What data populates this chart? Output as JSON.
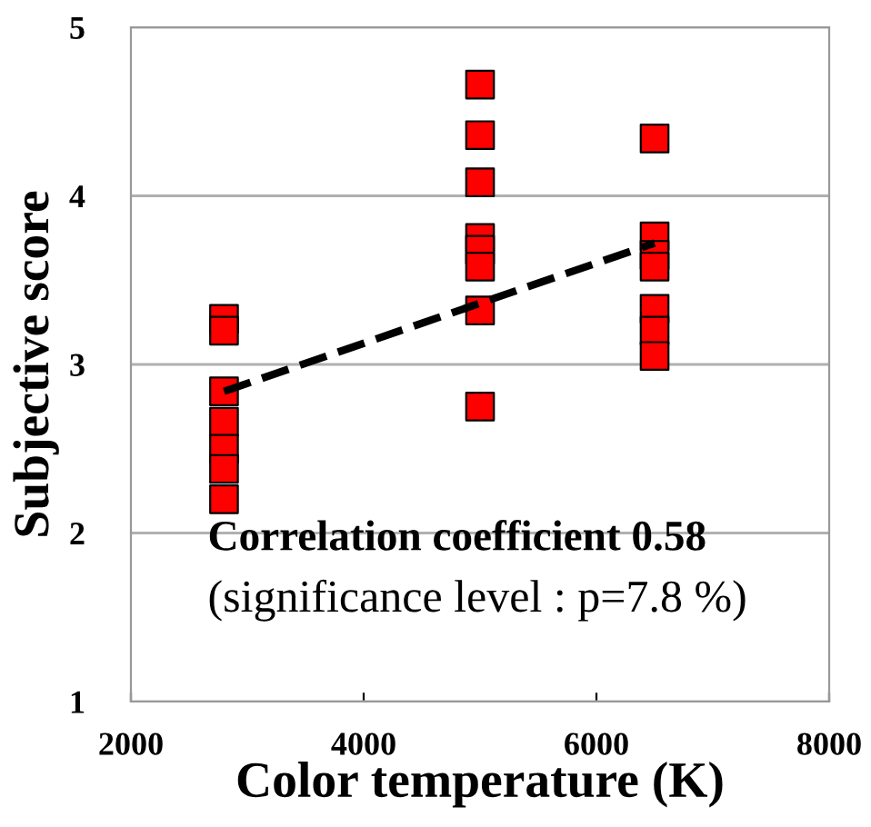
{
  "chart_data": {
    "type": "scatter",
    "xlabel": "Color temperature (K)",
    "ylabel": "Subjective score",
    "xlim": [
      2000,
      8000
    ],
    "xticks": [
      2000,
      4000,
      6000,
      8000
    ],
    "ylim": [
      1,
      5
    ],
    "yticks": [
      1,
      2,
      3,
      4,
      5
    ],
    "grid": "y",
    "marker": "square",
    "series": [
      {
        "color": "#ff0000",
        "x": [
          2800,
          2800,
          2800,
          2800,
          2800,
          2800,
          2800,
          5000,
          5000,
          5000,
          5000,
          5000,
          5000,
          5000,
          5000,
          6500,
          6500,
          6500,
          6500,
          6500,
          6500,
          6500
        ],
        "values": [
          3.27,
          3.2,
          2.84,
          2.66,
          2.5,
          2.38,
          2.2,
          4.66,
          4.36,
          4.08,
          3.75,
          3.68,
          3.58,
          3.32,
          2.75,
          4.34,
          3.76,
          3.65,
          3.58,
          3.33,
          3.2,
          3.05
        ]
      },
      {
        "type": "line",
        "color": "#000000",
        "line_style": "dashed",
        "marker": "none",
        "x": [
          2800,
          6500
        ],
        "values": [
          2.84,
          3.72
        ]
      }
    ],
    "annotations": [
      "Correlation coefficient 0.58",
      "(significance level : p=7.8 %)"
    ]
  }
}
